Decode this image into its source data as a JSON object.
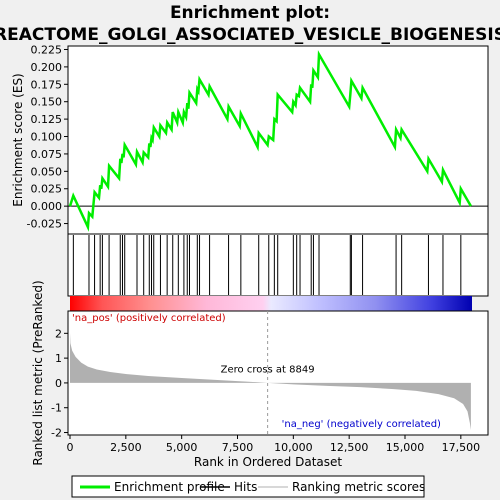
{
  "chart_data": {
    "type": "line",
    "title_line1": "Enrichment plot:",
    "title_line2": "REACTOME_GOLGI_ASSOCIATED_VESICLE_BIOGENESIS",
    "xlabel": "Rank in Ordered Dataset",
    "es_ylabel": "Enrichment score (ES)",
    "metric_ylabel": "Ranked list metric (PreRanked)",
    "xlim": [
      0,
      18000
    ],
    "x_ticks": [
      0,
      2500,
      5000,
      7500,
      10000,
      12500,
      15000,
      17500
    ],
    "x_tick_labels": [
      "0",
      "2,500",
      "5,000",
      "7,500",
      "10,000",
      "12,500",
      "15,000",
      "17,500"
    ],
    "es_ylim": [
      -0.04,
      0.23
    ],
    "es_ticks": [
      -0.025,
      0.0,
      0.025,
      0.05,
      0.075,
      0.1,
      0.125,
      0.15,
      0.175,
      0.2,
      0.225
    ],
    "es_tick_labels": [
      "-0.025",
      "0.000",
      "0.025",
      "0.050",
      "0.075",
      "0.100",
      "0.125",
      "0.150",
      "0.175",
      "0.200",
      "0.225"
    ],
    "metric_ylim": [
      -2.1,
      2.9
    ],
    "metric_ticks": [
      -2,
      -1,
      0,
      1,
      2
    ],
    "metric_tick_labels": [
      "-2",
      "-1",
      "0",
      "1",
      "2"
    ],
    "hits": [
      150,
      850,
      1100,
      1350,
      1450,
      1750,
      2250,
      2350,
      2450,
      3000,
      3300,
      3550,
      3650,
      3750,
      4050,
      4350,
      4600,
      4850,
      5100,
      5250,
      5350,
      5700,
      5800,
      6250,
      7100,
      7650,
      8450,
      8900,
      9150,
      9300,
      10000,
      10150,
      10300,
      10800,
      10900,
      11150,
      12550,
      12600,
      13100,
      14600,
      14850,
      16050,
      16700,
      17500
    ],
    "es_points": [
      [
        0,
        0.0
      ],
      [
        150,
        0.015
      ],
      [
        800,
        -0.03
      ],
      [
        850,
        -0.01
      ],
      [
        1000,
        -0.015
      ],
      [
        1100,
        0.02
      ],
      [
        1300,
        0.012
      ],
      [
        1350,
        0.03
      ],
      [
        1400,
        0.025
      ],
      [
        1450,
        0.04
      ],
      [
        1700,
        0.028
      ],
      [
        1750,
        0.058
      ],
      [
        2200,
        0.04
      ],
      [
        2250,
        0.068
      ],
      [
        2300,
        0.062
      ],
      [
        2350,
        0.075
      ],
      [
        2400,
        0.07
      ],
      [
        2450,
        0.088
      ],
      [
        2950,
        0.06
      ],
      [
        3000,
        0.078
      ],
      [
        3250,
        0.063
      ],
      [
        3300,
        0.077
      ],
      [
        3500,
        0.07
      ],
      [
        3550,
        0.09
      ],
      [
        3600,
        0.085
      ],
      [
        3650,
        0.098
      ],
      [
        3700,
        0.095
      ],
      [
        3750,
        0.113
      ],
      [
        4000,
        0.1
      ],
      [
        4050,
        0.116
      ],
      [
        4300,
        0.105
      ],
      [
        4350,
        0.12
      ],
      [
        4550,
        0.11
      ],
      [
        4600,
        0.135
      ],
      [
        4800,
        0.12
      ],
      [
        4850,
        0.135
      ],
      [
        5050,
        0.12
      ],
      [
        5100,
        0.135
      ],
      [
        5200,
        0.128
      ],
      [
        5250,
        0.148
      ],
      [
        5300,
        0.14
      ],
      [
        5350,
        0.163
      ],
      [
        5650,
        0.148
      ],
      [
        5700,
        0.168
      ],
      [
        5750,
        0.165
      ],
      [
        5800,
        0.182
      ],
      [
        6200,
        0.16
      ],
      [
        6250,
        0.172
      ],
      [
        7050,
        0.125
      ],
      [
        7100,
        0.143
      ],
      [
        7600,
        0.115
      ],
      [
        7650,
        0.133
      ],
      [
        8400,
        0.085
      ],
      [
        8450,
        0.105
      ],
      [
        8850,
        0.088
      ],
      [
        8900,
        0.1
      ],
      [
        9100,
        0.095
      ],
      [
        9150,
        0.125
      ],
      [
        9250,
        0.122
      ],
      [
        9300,
        0.16
      ],
      [
        9950,
        0.135
      ],
      [
        10000,
        0.15
      ],
      [
        10100,
        0.145
      ],
      [
        10150,
        0.16
      ],
      [
        10250,
        0.158
      ],
      [
        10300,
        0.17
      ],
      [
        10750,
        0.15
      ],
      [
        10800,
        0.175
      ],
      [
        10850,
        0.17
      ],
      [
        10900,
        0.195
      ],
      [
        11100,
        0.185
      ],
      [
        11150,
        0.218
      ],
      [
        12500,
        0.143
      ],
      [
        12550,
        0.16
      ],
      [
        12600,
        0.18
      ],
      [
        13050,
        0.155
      ],
      [
        13100,
        0.17
      ],
      [
        14550,
        0.085
      ],
      [
        14600,
        0.11
      ],
      [
        14800,
        0.098
      ],
      [
        14850,
        0.11
      ],
      [
        16000,
        0.05
      ],
      [
        16050,
        0.068
      ],
      [
        16650,
        0.035
      ],
      [
        16700,
        0.052
      ],
      [
        17450,
        0.005
      ],
      [
        17500,
        0.025
      ],
      [
        17950,
        0.0
      ]
    ],
    "metric_points": [
      [
        0,
        2.0
      ],
      [
        20,
        1.6
      ],
      [
        100,
        1.3
      ],
      [
        250,
        1.05
      ],
      [
        500,
        0.82
      ],
      [
        800,
        0.66
      ],
      [
        1200,
        0.54
      ],
      [
        1800,
        0.44
      ],
      [
        2500,
        0.36
      ],
      [
        3500,
        0.28
      ],
      [
        5000,
        0.2
      ],
      [
        6500,
        0.12
      ],
      [
        8000,
        0.05
      ],
      [
        8849,
        0.0
      ],
      [
        10000,
        -0.06
      ],
      [
        11500,
        -0.12
      ],
      [
        13000,
        -0.17
      ],
      [
        14500,
        -0.25
      ],
      [
        15500,
        -0.32
      ],
      [
        16500,
        -0.45
      ],
      [
        17200,
        -0.62
      ],
      [
        17600,
        -0.85
      ],
      [
        17800,
        -1.15
      ],
      [
        17900,
        -1.6
      ],
      [
        17950,
        -1.9
      ]
    ],
    "zero_cross": 8849,
    "zero_cross_label": "Zero cross at 8849",
    "pos_label": "'na_pos' (positively correlated)",
    "neg_label": "'na_neg' (negatively correlated)",
    "colors": {
      "es_line": "#00ee00",
      "hit": "#000000",
      "metric_fill": "#b0b0b0",
      "pos_text": "#cc0000",
      "neg_text": "#0000cc",
      "zero_line": "#000000",
      "dash_line": "#999999"
    },
    "legend": [
      {
        "label": "Enrichment profile",
        "kind": "line",
        "color": "#00ee00"
      },
      {
        "label": "Hits",
        "kind": "line",
        "color": "#000000"
      },
      {
        "label": "Ranking metric scores",
        "kind": "line",
        "color": "#cccccc"
      }
    ]
  }
}
